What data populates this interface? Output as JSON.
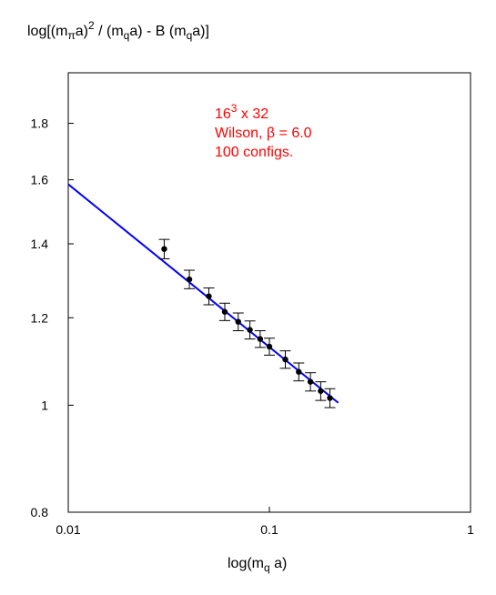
{
  "chart_data": {
    "type": "scatter",
    "ylabel": {
      "prefix": "log[(m",
      "sub1": "π",
      "mid1": "a)",
      "sup1": "2",
      "mid2": " / (m",
      "sub2": "q",
      "mid3": "a)  -  B (m",
      "sub3": "q",
      "suffix": "a)]"
    },
    "xlabel": {
      "prefix": "log(m",
      "sub": "q",
      "suffix": " a)"
    },
    "annotation": {
      "line1_base": "16",
      "line1_sup": "3",
      "line1_rest": " x 32",
      "line2": "Wilson, β = 6.0",
      "line3": "100 configs."
    },
    "x_scale": "log",
    "y_scale": "log",
    "xlim": [
      0.01,
      1
    ],
    "ylim": [
      0.8,
      2.0
    ],
    "x_ticks": [
      0.01,
      0.1,
      1
    ],
    "x_tick_labels": [
      "0.01",
      "0.1",
      "1"
    ],
    "y_ticks": [
      0.8,
      1,
      1.2,
      1.4,
      1.6,
      1.8
    ],
    "y_tick_labels": [
      "0.8",
      "1",
      "1.2",
      "1.4",
      "1.6",
      "1.8"
    ],
    "grid": false,
    "series": [
      {
        "kind": "points",
        "color": "#000000",
        "x": [
          0.03,
          0.04,
          0.05,
          0.06,
          0.07,
          0.08,
          0.09,
          0.1,
          0.12,
          0.14,
          0.16,
          0.18,
          0.2
        ],
        "y": [
          1.385,
          1.3,
          1.255,
          1.215,
          1.19,
          1.17,
          1.148,
          1.13,
          1.1,
          1.072,
          1.05,
          1.03,
          1.015
        ],
        "err": [
          0.028,
          0.025,
          0.022,
          0.022,
          0.022,
          0.022,
          0.02,
          0.02,
          0.02,
          0.02,
          0.02,
          0.02,
          0.02
        ]
      },
      {
        "kind": "line",
        "color": "#0000ff",
        "x": [
          0.01,
          0.22
        ],
        "y": [
          1.585,
          1.005
        ]
      }
    ]
  }
}
